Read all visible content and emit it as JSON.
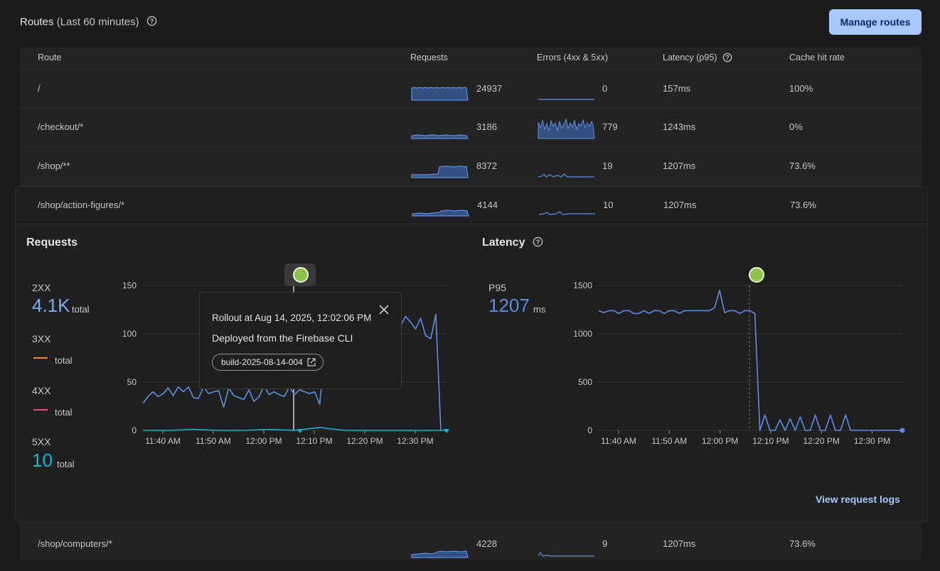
{
  "header": {
    "title": "Routes",
    "subtitle": "(Last 60 minutes)",
    "manage_label": "Manage routes"
  },
  "table": {
    "columns": [
      "Route",
      "Requests",
      "Errors (4xx & 5xx)",
      "Latency (p95)",
      "Cache hit rate"
    ],
    "rows": [
      {
        "route": "/",
        "requests": "24937",
        "errors": "0",
        "latency": "157ms",
        "cache": "100%"
      },
      {
        "route": "/checkout/*",
        "requests": "3186",
        "errors": "779",
        "latency": "1243ms",
        "cache": "0%"
      },
      {
        "route": "/shop/**",
        "requests": "8372",
        "errors": "19",
        "latency": "1207ms",
        "cache": "73.6%"
      },
      {
        "route": "/shop/action-figures/*",
        "requests": "4144",
        "errors": "10",
        "latency": "1207ms",
        "cache": "73.6%"
      },
      {
        "route": "/shop/computers/*",
        "requests": "4228",
        "errors": "9",
        "latency": "1207ms",
        "cache": "73.6%"
      }
    ]
  },
  "details": {
    "requests_title": "Requests",
    "latency_title": "Latency",
    "stats": [
      {
        "label": "2XX",
        "value": "4.1K",
        "total": "total",
        "color": "#7cacf8"
      },
      {
        "label": "3XX",
        "value": "",
        "total": "total",
        "color": "#ee8d2d"
      },
      {
        "label": "4XX",
        "value": "",
        "total": "total",
        "color": "#e4557f"
      },
      {
        "label": "5XX",
        "value": "10",
        "total": "total",
        "color": "#14b7c9"
      }
    ],
    "latency_stat": {
      "label": "P95",
      "value": "1207",
      "unit": "ms"
    },
    "view_logs": "View request logs",
    "tooltip": {
      "title": "Rollout at Aug 14, 2025, 12:02:06 PM",
      "description": "Deployed from the Firebase CLI",
      "build": "build-2025-08-14-004"
    }
  },
  "chart_data": [
    {
      "type": "line",
      "title": "Requests",
      "x_ticks": [
        "11:40 AM",
        "11:50 AM",
        "12:00 PM",
        "12:10 PM",
        "12:20 PM",
        "12:30 PM"
      ],
      "ylim": [
        0,
        150
      ],
      "y_ticks": [
        0,
        50,
        100,
        150
      ],
      "series": [
        {
          "name": "2XX",
          "color": "#5b8fe6",
          "x_minutes": [
            0,
            1,
            2,
            3,
            4,
            5,
            6,
            7,
            8,
            9,
            10,
            11,
            12,
            13,
            14,
            15,
            16,
            17,
            18,
            19,
            20,
            21,
            22,
            23,
            24,
            25,
            26,
            27,
            28,
            29,
            30,
            31,
            32,
            33,
            34,
            35,
            36,
            37,
            38,
            39,
            40,
            41,
            42,
            43,
            44,
            45,
            46,
            47,
            48,
            49,
            50,
            51,
            52,
            53,
            54,
            55,
            56,
            57,
            58,
            59,
            60
          ],
          "values": [
            28,
            35,
            40,
            35,
            38,
            44,
            36,
            45,
            40,
            45,
            34,
            33,
            45,
            38,
            40,
            41,
            24,
            44,
            36,
            34,
            32,
            42,
            30,
            35,
            46,
            37,
            40,
            37,
            35,
            45,
            37,
            42,
            40,
            38,
            40,
            27,
            80,
            95,
            100,
            110,
            105,
            112,
            100,
            118,
            106,
            108,
            115,
            110,
            112,
            120,
            115,
            108,
            118,
            112,
            105,
            116,
            98,
            95,
            120,
            0,
            0
          ]
        },
        {
          "name": "5XX",
          "color": "#14b7c9",
          "x_minutes": [
            0,
            5,
            10,
            15,
            20,
            25,
            30,
            35,
            40,
            45,
            50,
            55,
            59
          ],
          "values": [
            0,
            0,
            1,
            0,
            0,
            1,
            0,
            3,
            0,
            0,
            0,
            0,
            0
          ]
        }
      ]
    },
    {
      "type": "line",
      "title": "Latency",
      "x_ticks": [
        "11:40 AM",
        "11:50 AM",
        "12:00 PM",
        "12:10 PM",
        "12:20 PM",
        "12:30 PM"
      ],
      "ylim": [
        0,
        1500
      ],
      "y_ticks": [
        0,
        500,
        1000,
        1500
      ],
      "series": [
        {
          "name": "P95",
          "color": "#5b8fe6",
          "x_minutes": [
            0,
            1,
            2,
            3,
            4,
            5,
            6,
            7,
            8,
            9,
            10,
            11,
            12,
            13,
            14,
            15,
            16,
            17,
            18,
            19,
            20,
            21,
            22,
            23,
            24,
            25,
            26,
            27,
            28,
            29,
            30,
            31,
            32,
            33,
            34,
            35,
            36,
            37,
            38,
            39,
            40,
            41,
            42,
            43,
            44,
            45,
            46,
            47,
            48,
            49,
            50,
            51,
            52,
            53,
            54,
            55,
            56,
            57,
            58,
            59,
            60
          ],
          "values": [
            1240,
            1220,
            1240,
            1240,
            1210,
            1240,
            1240,
            1210,
            1210,
            1240,
            1210,
            1240,
            1240,
            1210,
            1240,
            1240,
            1210,
            1240,
            1240,
            1240,
            1240,
            1240,
            1240,
            1270,
            1450,
            1220,
            1240,
            1240,
            1210,
            1240,
            1240,
            1210,
            0,
            160,
            0,
            0,
            110,
            0,
            120,
            0,
            140,
            0,
            0,
            160,
            0,
            0,
            160,
            0,
            0,
            160,
            0,
            0,
            0,
            0,
            0,
            0,
            0,
            0,
            0,
            0,
            0
          ]
        }
      ]
    }
  ]
}
